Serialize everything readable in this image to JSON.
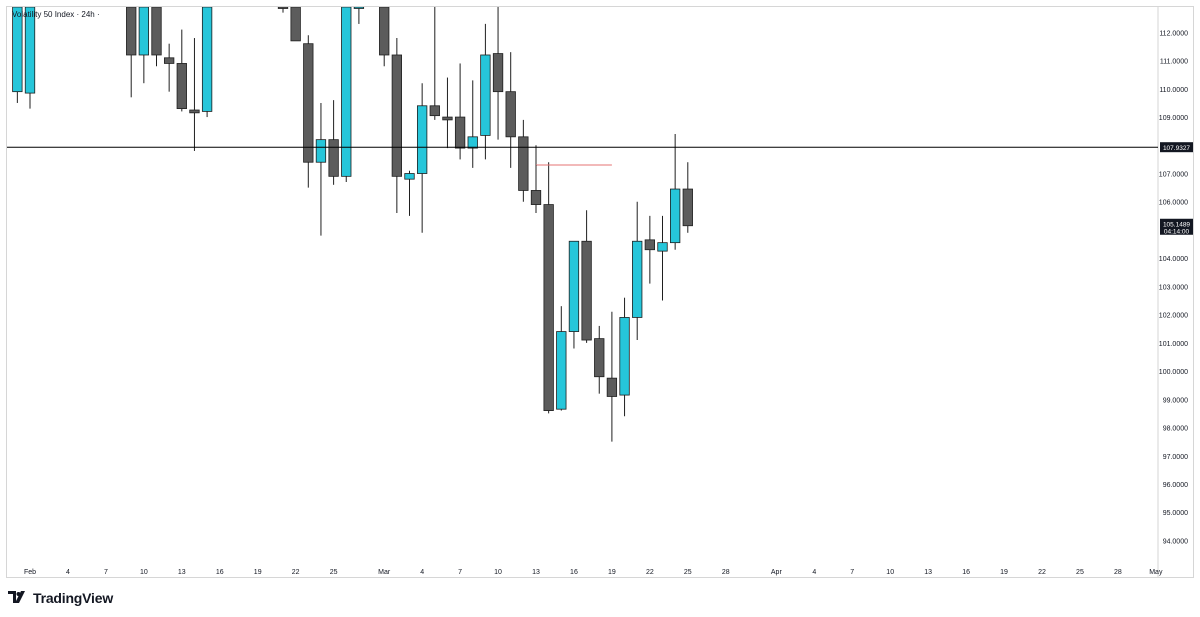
{
  "brand": {
    "name": "TradingView",
    "logo_icon": "tradingview-logo-icon"
  },
  "colors": {
    "up": "#26c6da",
    "down": "#5c5c5c",
    "border": "#1f1f1f",
    "hline": "#000000",
    "redline": "#e57373",
    "price_label_bg": "#131722"
  },
  "chart_data": {
    "type": "candlestick",
    "title": "Volatility 50 Index · 24h ·",
    "ylim": [
      93.2,
      112.9
    ],
    "y_ticks": [
      94,
      95,
      96,
      97,
      98,
      99,
      100,
      101,
      102,
      103,
      104,
      105,
      106,
      107,
      108,
      109,
      110,
      111,
      112
    ],
    "y_tick_labels": [
      "94.0000",
      "95.0000",
      "96.0000",
      "97.0000",
      "98.0000",
      "99.0000",
      "100.0000",
      "101.0000",
      "102.0000",
      "103.0000",
      "104.0000",
      "106.0000",
      "107.0000",
      "109.0000",
      "110.0000",
      "111.0000",
      "112.0000"
    ],
    "y_tick_values": [
      94,
      95,
      96,
      97,
      98,
      99,
      100,
      101,
      102,
      103,
      104,
      106,
      107,
      109,
      110,
      111,
      112
    ],
    "x_domain": [
      0,
      101.5
    ],
    "x_ticks": [
      {
        "label": "Feb",
        "x": 0
      },
      {
        "label": "4",
        "x": 3
      },
      {
        "label": "7",
        "x": 6
      },
      {
        "label": "10",
        "x": 9
      },
      {
        "label": "13",
        "x": 12
      },
      {
        "label": "16",
        "x": 15
      },
      {
        "label": "19",
        "x": 18
      },
      {
        "label": "22",
        "x": 21
      },
      {
        "label": "25",
        "x": 24
      },
      {
        "label": "Mar",
        "x": 28
      },
      {
        "label": "4",
        "x": 31
      },
      {
        "label": "7",
        "x": 34
      },
      {
        "label": "10",
        "x": 37
      },
      {
        "label": "13",
        "x": 40
      },
      {
        "label": "16",
        "x": 43
      },
      {
        "label": "19",
        "x": 46
      },
      {
        "label": "22",
        "x": 49
      },
      {
        "label": "25",
        "x": 52
      },
      {
        "label": "28",
        "x": 55
      },
      {
        "label": "Apr",
        "x": 59
      },
      {
        "label": "4",
        "x": 62
      },
      {
        "label": "7",
        "x": 65
      },
      {
        "label": "10",
        "x": 68
      },
      {
        "label": "13",
        "x": 71
      },
      {
        "label": "16",
        "x": 74
      },
      {
        "label": "19",
        "x": 77
      },
      {
        "label": "22",
        "x": 80
      },
      {
        "label": "25",
        "x": 83
      },
      {
        "label": "28",
        "x": 86
      },
      {
        "label": "May",
        "x": 89
      }
    ],
    "candles": [
      {
        "x": -1,
        "o": 109.9,
        "h": 113.5,
        "l": 109.5,
        "c": 113.5
      },
      {
        "x": 0,
        "o": 109.85,
        "h": 113.5,
        "l": 109.3,
        "c": 113.5
      },
      {
        "x": 8,
        "o": 113.5,
        "h": 113.5,
        "l": 109.7,
        "c": 111.2
      },
      {
        "x": 9,
        "o": 111.2,
        "h": 113.5,
        "l": 110.2,
        "c": 113.5
      },
      {
        "x": 10,
        "o": 113.5,
        "h": 113.5,
        "l": 110.8,
        "c": 111.2
      },
      {
        "x": 11,
        "o": 111.1,
        "h": 111.6,
        "l": 109.9,
        "c": 110.9
      },
      {
        "x": 12,
        "o": 110.9,
        "h": 112.1,
        "l": 109.2,
        "c": 109.3
      },
      {
        "x": 13,
        "o": 109.25,
        "h": 111.8,
        "l": 107.8,
        "c": 109.15
      },
      {
        "x": 14,
        "o": 109.2,
        "h": 113.5,
        "l": 109.0,
        "c": 113.5
      },
      {
        "x": 20,
        "o": 113.5,
        "h": 113.5,
        "l": 112.7,
        "c": 112.9
      },
      {
        "x": 21,
        "o": 112.9,
        "h": 113.5,
        "l": 111.7,
        "c": 111.7
      },
      {
        "x": 22,
        "o": 111.6,
        "h": 111.9,
        "l": 106.5,
        "c": 107.4
      },
      {
        "x": 23,
        "o": 107.4,
        "h": 109.5,
        "l": 104.8,
        "c": 108.2
      },
      {
        "x": 24,
        "o": 108.2,
        "h": 109.6,
        "l": 106.6,
        "c": 106.9
      },
      {
        "x": 25,
        "o": 106.9,
        "h": 113.5,
        "l": 106.7,
        "c": 112.9
      },
      {
        "x": 26,
        "o": 112.9,
        "h": 113.5,
        "l": 112.3,
        "c": 113.5
      },
      {
        "x": 28,
        "o": 113.5,
        "h": 113.5,
        "l": 110.8,
        "c": 111.2
      },
      {
        "x": 29,
        "o": 111.2,
        "h": 111.8,
        "l": 105.6,
        "c": 106.9
      },
      {
        "x": 30,
        "o": 106.8,
        "h": 107.1,
        "l": 105.5,
        "c": 107.0
      },
      {
        "x": 31,
        "o": 107.0,
        "h": 110.2,
        "l": 104.9,
        "c": 109.4
      },
      {
        "x": 32,
        "o": 109.4,
        "h": 113.5,
        "l": 108.9,
        "c": 109.05
      },
      {
        "x": 33,
        "o": 109.0,
        "h": 110.4,
        "l": 107.9,
        "c": 108.9
      },
      {
        "x": 34,
        "o": 109.0,
        "h": 110.9,
        "l": 107.5,
        "c": 107.9
      },
      {
        "x": 35,
        "o": 107.9,
        "h": 110.3,
        "l": 107.2,
        "c": 108.3
      },
      {
        "x": 36,
        "o": 108.35,
        "h": 112.3,
        "l": 107.5,
        "c": 111.2
      },
      {
        "x": 37,
        "o": 111.25,
        "h": 113.5,
        "l": 108.2,
        "c": 109.9
      },
      {
        "x": 38,
        "o": 109.9,
        "h": 111.3,
        "l": 107.2,
        "c": 108.3
      },
      {
        "x": 39,
        "o": 108.3,
        "h": 108.9,
        "l": 106.0,
        "c": 106.4
      },
      {
        "x": 40,
        "o": 106.4,
        "h": 108.0,
        "l": 105.6,
        "c": 105.9
      },
      {
        "x": 41,
        "o": 105.9,
        "h": 107.4,
        "l": 98.5,
        "c": 98.6
      },
      {
        "x": 42,
        "o": 98.65,
        "h": 102.3,
        "l": 98.6,
        "c": 101.4
      },
      {
        "x": 43,
        "o": 101.4,
        "h": 104.6,
        "l": 100.8,
        "c": 104.6
      },
      {
        "x": 44,
        "o": 104.6,
        "h": 105.7,
        "l": 101.0,
        "c": 101.1
      },
      {
        "x": 45,
        "o": 101.15,
        "h": 101.6,
        "l": 99.2,
        "c": 99.8
      },
      {
        "x": 46,
        "o": 99.75,
        "h": 102.1,
        "l": 97.5,
        "c": 99.1
      },
      {
        "x": 47,
        "o": 99.15,
        "h": 102.6,
        "l": 98.4,
        "c": 101.9
      },
      {
        "x": 48,
        "o": 101.9,
        "h": 106.0,
        "l": 101.1,
        "c": 104.6
      },
      {
        "x": 49,
        "o": 104.65,
        "h": 105.5,
        "l": 103.1,
        "c": 104.3
      },
      {
        "x": 50,
        "o": 104.25,
        "h": 105.5,
        "l": 102.5,
        "c": 104.55
      },
      {
        "x": 51,
        "o": 104.55,
        "h": 108.4,
        "l": 104.3,
        "c": 106.45
      },
      {
        "x": 52,
        "o": 106.45,
        "h": 107.4,
        "l": 104.9,
        "c": 105.15
      }
    ],
    "horizontal_line": {
      "value": 107.9327,
      "label": "107.9327"
    },
    "red_segment": {
      "value": 107.3,
      "x_start": 40,
      "x_end": 46
    },
    "current_price": {
      "value": 105.1489,
      "label": "105.1489",
      "countdown": "04:14:00"
    }
  }
}
